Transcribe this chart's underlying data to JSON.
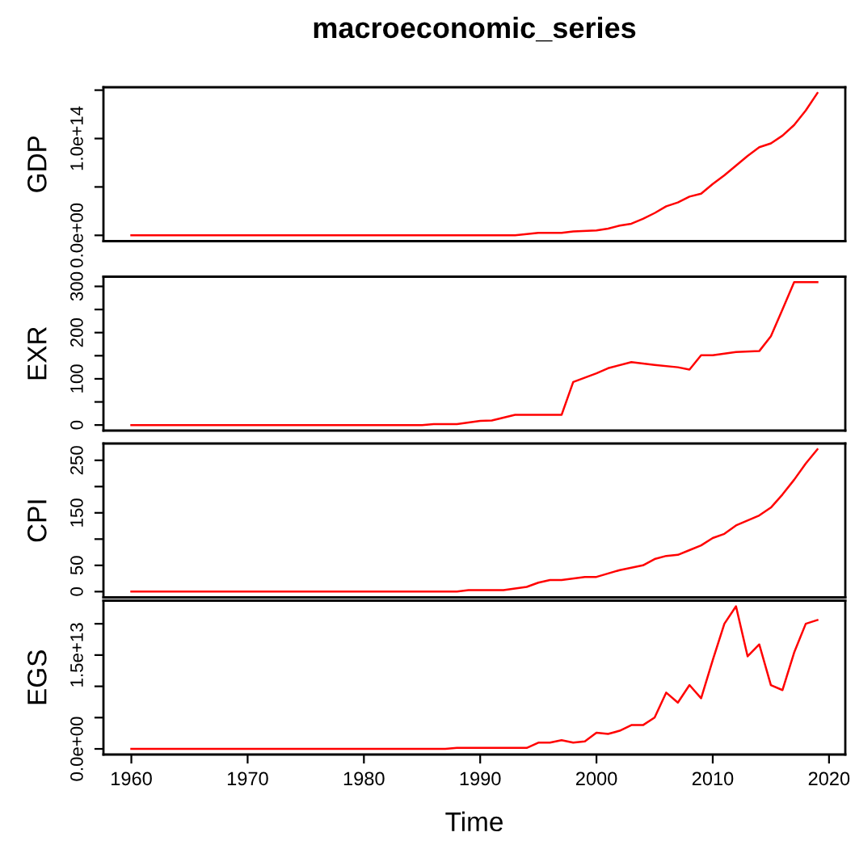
{
  "chart_data": [
    {
      "type": "line",
      "title": "macroeconomic_series",
      "ylabel": "GDP",
      "color": "#ff0000",
      "x": [
        1960,
        1993,
        1995,
        1997,
        1998,
        2000,
        2001,
        2002,
        2003,
        2004,
        2005,
        2006,
        2007,
        2008,
        2009,
        2010,
        2011,
        2012,
        2013,
        2014,
        2015,
        2016,
        2017,
        2018,
        2019
      ],
      "values": [
        0,
        0,
        2600000000000.0,
        2600000000000.0,
        4000000000000.0,
        5000000000000.0,
        7000000000000.0,
        10000000000000.0,
        12000000000000.0,
        17000000000000.0,
        23000000000000.0,
        30000000000000.0,
        34000000000000.0,
        40000000000000.0,
        43000000000000.0,
        53000000000000.0,
        62000000000000.0,
        72000000000000.0,
        82000000000000.0,
        91000000000000.0,
        95000000000000.0,
        103000000000000.0,
        114000000000000.0,
        129000000000000.0,
        147000000000000.0
      ],
      "xlim": [
        1957.6,
        2021.4
      ],
      "ylim": [
        -6000000000000.0,
        153000000000000.0
      ],
      "yticks": [
        {
          "value": 0,
          "label": "0.0e+00"
        },
        {
          "value": 50000000000000.0,
          "label": null
        },
        {
          "value": 100000000000000.0,
          "label": "1.0e+14"
        },
        {
          "value": 150000000000000.0,
          "label": null
        }
      ],
      "tick_labels": "y"
    },
    {
      "type": "line",
      "ylabel": "EXR",
      "color": "#ff0000",
      "x": [
        1960,
        1985,
        1986,
        1988,
        1990,
        1991,
        1993,
        1997,
        1998,
        2000,
        2001,
        2003,
        2005,
        2007,
        2008,
        2009,
        2010,
        2012,
        2014,
        2015,
        2016,
        2017,
        2019
      ],
      "values": [
        0,
        0,
        2,
        2,
        9,
        10,
        22,
        22,
        93,
        112,
        123,
        136,
        130,
        125,
        120,
        151,
        151,
        158,
        160,
        192,
        250,
        309,
        309
      ],
      "xlim": [
        1957.6,
        2021.4
      ],
      "ylim": [
        -12,
        321
      ],
      "yticks": [
        0,
        {
          "value": 50,
          "label": null
        },
        100,
        {
          "value": 150,
          "label": null
        },
        200,
        {
          "value": 250,
          "label": null
        },
        300
      ],
      "tick_labels": "y"
    },
    {
      "type": "line",
      "ylabel": "CPI",
      "color": "#ff0000",
      "x": [
        1960,
        1988,
        1989,
        1992,
        1994,
        1995,
        1996,
        1997,
        1999,
        2000,
        2002,
        2004,
        2005,
        2006,
        2007,
        2008,
        2009,
        2010,
        2011,
        2012,
        2014,
        2015,
        2016,
        2017,
        2018,
        2019
      ],
      "values": [
        0,
        0,
        3,
        3,
        9,
        17,
        22,
        22,
        28,
        28,
        41,
        50,
        62,
        68,
        70,
        79,
        88,
        102,
        110,
        126,
        145,
        160,
        185,
        213,
        244,
        271
      ],
      "xlim": [
        1957.6,
        2021.4
      ],
      "ylim": [
        -11,
        282
      ],
      "yticks": [
        0,
        50,
        {
          "value": 100,
          "label": null
        },
        150,
        {
          "value": 200,
          "label": null
        },
        250
      ],
      "tick_labels": "y"
    },
    {
      "type": "line",
      "ylabel": "EGS",
      "xlabel": "Time",
      "color": "#ff0000",
      "x": [
        1960,
        1987,
        1988,
        1994,
        1995,
        1996,
        1997,
        1998,
        1999,
        2000,
        2001,
        2002,
        2003,
        2004,
        2005,
        2006,
        2007,
        2008,
        2009,
        2010,
        2011,
        2012,
        2013,
        2014,
        2015,
        2016,
        2017,
        2018,
        2019
      ],
      "values": [
        0,
        0,
        160000000000.0,
        160000000000.0,
        1000000000000.0,
        1000000000000.0,
        1400000000000.0,
        1000000000000.0,
        1200000000000.0,
        2600000000000.0,
        2400000000000.0,
        2900000000000.0,
        3800000000000.0,
        3800000000000.0,
        5000000000000.0,
        9000000000000.0,
        7400000000000.0,
        10200000000000.0,
        8100000000000.0,
        14200000000000.0,
        20000000000000.0,
        22800000000000.0,
        14800000000000.0,
        16700000000000.0,
        10200000000000.0,
        9400000000000.0,
        15400000000000.0,
        20000000000000.0,
        20600000000000.0
      ],
      "xlim": [
        1957.6,
        2021.4
      ],
      "ylim": [
        -900000000000.0,
        23700000000000.0
      ],
      "xticks": [
        1960,
        1970,
        1980,
        1990,
        2000,
        2010,
        2020
      ],
      "yticks": [
        {
          "value": 0,
          "label": "0.0e+00"
        },
        {
          "value": 5000000000000.0,
          "label": null
        },
        {
          "value": 10000000000000.0,
          "label": null
        },
        {
          "value": 15000000000000.0,
          "label": "1.5e+13"
        },
        {
          "value": 20000000000000.0,
          "label": null
        }
      ]
    }
  ]
}
